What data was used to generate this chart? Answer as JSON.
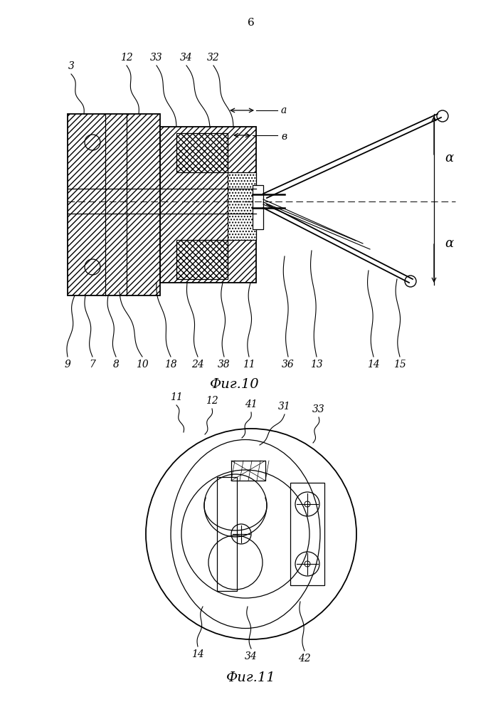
{
  "page_number": "6",
  "fig10_caption": "Фиг.10",
  "fig11_caption": "Фиг.11",
  "bg_color": "#ffffff"
}
